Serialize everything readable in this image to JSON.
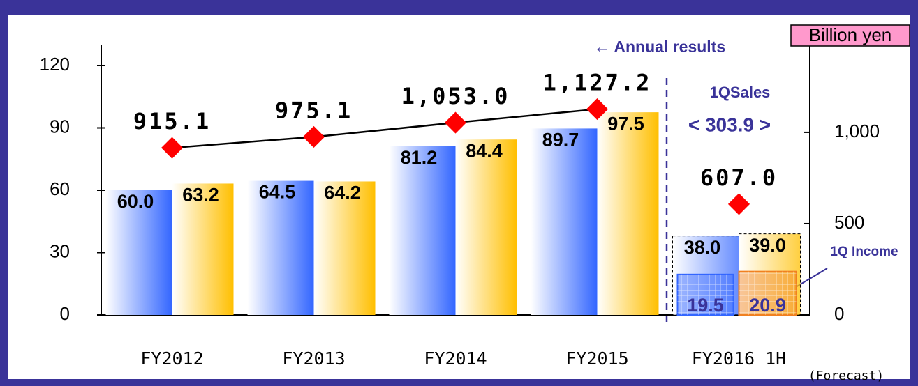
{
  "chart_data": {
    "type": "bar",
    "categories": [
      "FY2012",
      "FY2013",
      "FY2014",
      "FY2015",
      "FY2016 1H"
    ],
    "ylim": [
      0,
      120
    ],
    "yticks": [
      0,
      30,
      60,
      90,
      120
    ],
    "y2lim": [
      0,
      1366
    ],
    "y2ticks": [
      0,
      500,
      {
        "value": 1000,
        "label": "1,000"
      }
    ],
    "y2_unit": "Billion yen",
    "series": [
      {
        "type": "bar",
        "color": "#3366ff",
        "values": [
          60,
          64.5,
          81.2,
          89.7,
          38
        ],
        "value_labels": [
          "60.0",
          "64.5",
          "81.2",
          "89.7",
          "38.0"
        ]
      },
      {
        "type": "bar",
        "color": "#ffbf00",
        "values": [
          63.2,
          64.2,
          84.4,
          97.5,
          39
        ],
        "value_labels": [
          "63.2",
          "64.2",
          "84.4",
          "97.5",
          "39.0"
        ]
      },
      {
        "type": "line",
        "axis": "y2",
        "color": "#000000",
        "marker_color": "#ff0000",
        "values": [
          915.1,
          975.1,
          1053,
          1127.2,
          null
        ],
        "value_labels": [
          "915.1",
          "975.1",
          "1,053.0",
          "1,127.2",
          null
        ]
      },
      {
        "type": "scatter",
        "axis": "y2",
        "marker_color": "#ff0000",
        "values": [
          null,
          null,
          null,
          null,
          607
        ],
        "value_labels": [
          null,
          null,
          null,
          null,
          "607.0"
        ]
      }
    ],
    "q1": {
      "sales_label": "1QSales",
      "sales": "< 303.9 >",
      "income_label": "1Q Income",
      "income": [
        {
          "color": "#3366ff",
          "value": 19.5,
          "label": "19.5"
        },
        {
          "color": "#f08020",
          "value": 20.9,
          "label": "20.9"
        }
      ]
    },
    "annotations": {
      "annual": "← Annual results",
      "forecast": "(Forecast)"
    }
  }
}
